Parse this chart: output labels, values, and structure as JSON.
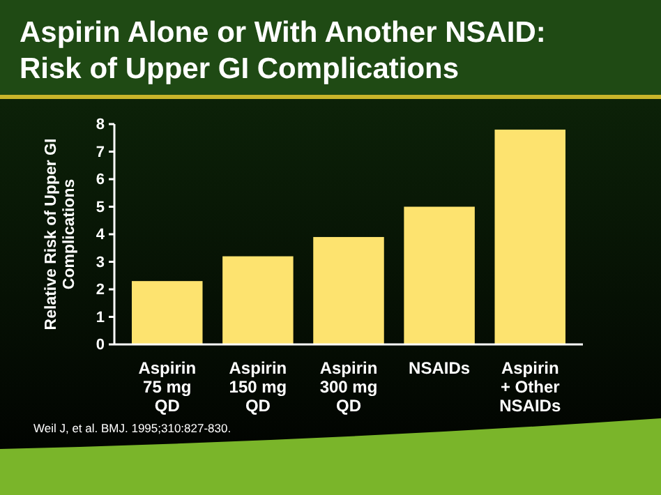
{
  "chart_data": {
    "type": "bar",
    "title": "Aspirin Alone or With Another NSAID:\nRisk of Upper GI Complications",
    "ylabel": "Relative Risk of Upper GI\nComplications",
    "categories": [
      "Aspirin\n75 mg\nQD",
      "Aspirin\n150 mg\nQD",
      "Aspirin\n300 mg\nQD",
      "NSAIDs",
      "Aspirin\n+ Other\nNSAIDs"
    ],
    "values": [
      2.3,
      3.2,
      3.9,
      5.0,
      7.8
    ],
    "color": "#fde36f",
    "ylim": [
      0,
      8
    ],
    "yticks": [
      0,
      1,
      2,
      3,
      4,
      5,
      6,
      7,
      8
    ],
    "grid": false,
    "annotations": [
      "Weil J, et al. BMJ. 1995;310:827-830."
    ]
  }
}
